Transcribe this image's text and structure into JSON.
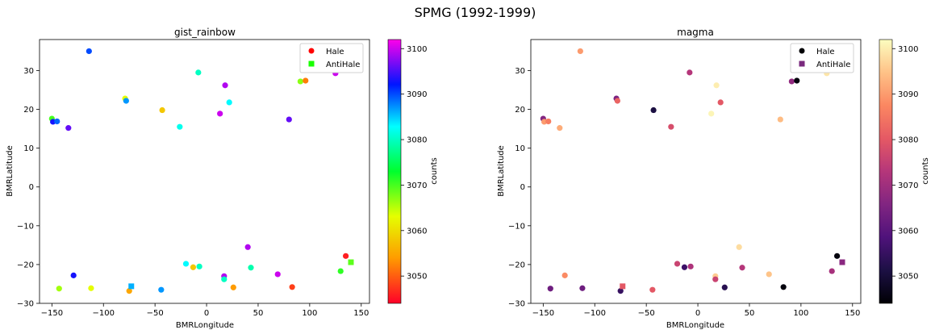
{
  "figure": {
    "suptitle": "SPMG (1992-1999)"
  },
  "chart_data": [
    {
      "type": "scatter",
      "title": "gist_rainbow",
      "xlabel": "BMRLongitude",
      "ylabel": "BMRLatitude",
      "xlim": [
        -162,
        158
      ],
      "ylim": [
        -30,
        38
      ],
      "xticks": [
        -150,
        -100,
        -50,
        0,
        50,
        100,
        150
      ],
      "yticks": [
        -30,
        -20,
        -10,
        0,
        10,
        20,
        30
      ],
      "colormap": "gist_rainbow",
      "colorbar": {
        "label": "counts",
        "range": [
          3044,
          3102
        ],
        "ticks": [
          3050,
          3060,
          3070,
          3080,
          3090,
          3100
        ]
      },
      "legend": {
        "placement": "top-right",
        "entries": [
          {
            "label": "Hale",
            "marker": "circle",
            "color": "#ff0000"
          },
          {
            "label": "AntiHale",
            "marker": "square",
            "color": "#19ff00"
          }
        ]
      },
      "series": [
        {
          "name": "Hale",
          "marker": "circle",
          "points": [
            {
              "x": -114,
              "y": 35,
              "c": 3090
            },
            {
              "x": -8,
              "y": 29.5,
              "c": 3080
            },
            {
              "x": 18,
              "y": 26.2,
              "c": 3099
            },
            {
              "x": 125,
              "y": 29.3,
              "c": 3100
            },
            {
              "x": -79,
              "y": 22.8,
              "c": 3063
            },
            {
              "x": -78,
              "y": 22.2,
              "c": 3087
            },
            {
              "x": 91,
              "y": 27.2,
              "c": 3067
            },
            {
              "x": 96,
              "y": 27.4,
              "c": 3052
            },
            {
              "x": 22,
              "y": 21.8,
              "c": 3083
            },
            {
              "x": -43,
              "y": 19.8,
              "c": 3058
            },
            {
              "x": 13,
              "y": 18.9,
              "c": 3100
            },
            {
              "x": -150,
              "y": 17.6,
              "c": 3070
            },
            {
              "x": -149,
              "y": 16.8,
              "c": 3093
            },
            {
              "x": -145,
              "y": 16.9,
              "c": 3089
            },
            {
              "x": -134,
              "y": 15.2,
              "c": 3096
            },
            {
              "x": -26,
              "y": 15.5,
              "c": 3082
            },
            {
              "x": 80,
              "y": 17.4,
              "c": 3096
            },
            {
              "x": 40,
              "y": -15.5,
              "c": 3099
            },
            {
              "x": 135,
              "y": -17.8,
              "c": 3046
            },
            {
              "x": -20,
              "y": -19.8,
              "c": 3083
            },
            {
              "x": -13,
              "y": -20.7,
              "c": 3058
            },
            {
              "x": -7,
              "y": -20.5,
              "c": 3080
            },
            {
              "x": 43,
              "y": -20.8,
              "c": 3079
            },
            {
              "x": 130,
              "y": -21.7,
              "c": 3071
            },
            {
              "x": -129,
              "y": -22.8,
              "c": 3093
            },
            {
              "x": 17,
              "y": -23,
              "c": 3099
            },
            {
              "x": 17,
              "y": -23.8,
              "c": 3080
            },
            {
              "x": 69,
              "y": -22.5,
              "c": 3100
            },
            {
              "x": -143,
              "y": -26.2,
              "c": 3066
            },
            {
              "x": -112,
              "y": -26.1,
              "c": 3063
            },
            {
              "x": -44,
              "y": -26.5,
              "c": 3087
            },
            {
              "x": -75,
              "y": -26.8,
              "c": 3055
            },
            {
              "x": 26,
              "y": -25.9,
              "c": 3054
            },
            {
              "x": 83,
              "y": -25.8,
              "c": 3048
            }
          ]
        },
        {
          "name": "AntiHale",
          "marker": "square",
          "points": [
            {
              "x": -73,
              "y": -25.6,
              "c": 3086
            },
            {
              "x": 140,
              "y": -19.4,
              "c": 3069
            }
          ]
        }
      ]
    },
    {
      "type": "scatter",
      "title": "magma",
      "xlabel": "BMRLongitude",
      "ylabel": "BMRLatitude",
      "xlim": [
        -162,
        158
      ],
      "ylim": [
        -30,
        38
      ],
      "xticks": [
        -150,
        -100,
        -50,
        0,
        50,
        100,
        150
      ],
      "yticks": [
        -30,
        -20,
        -10,
        0,
        10,
        20,
        30
      ],
      "colormap": "magma",
      "colorbar": {
        "label": "counts",
        "range": [
          3044,
          3102
        ],
        "ticks": [
          3050,
          3060,
          3070,
          3080,
          3090,
          3100
        ]
      },
      "legend": {
        "placement": "top-right",
        "entries": [
          {
            "label": "Hale",
            "marker": "circle",
            "color": "#000004"
          },
          {
            "label": "AntiHale",
            "marker": "square",
            "color": "#7a2a7e"
          }
        ]
      },
      "series": [
        {
          "name": "Hale",
          "marker": "circle",
          "points": [
            {
              "x": -114,
              "y": 35,
              "c": 3090
            },
            {
              "x": -8,
              "y": 29.5,
              "c": 3073
            },
            {
              "x": 18,
              "y": 26.2,
              "c": 3100
            },
            {
              "x": 125,
              "y": 29.3,
              "c": 3099
            },
            {
              "x": -79,
              "y": 22.8,
              "c": 3065
            },
            {
              "x": -78,
              "y": 22.2,
              "c": 3082
            },
            {
              "x": 91,
              "y": 27.2,
              "c": 3068
            },
            {
              "x": 96,
              "y": 27.4,
              "c": 3045
            },
            {
              "x": 22,
              "y": 21.8,
              "c": 3080
            },
            {
              "x": -43,
              "y": 19.8,
              "c": 3051
            },
            {
              "x": 13,
              "y": 18.9,
              "c": 3101
            },
            {
              "x": -150,
              "y": 17.6,
              "c": 3066
            },
            {
              "x": -149,
              "y": 16.8,
              "c": 3090
            },
            {
              "x": -145,
              "y": 16.9,
              "c": 3086
            },
            {
              "x": -134,
              "y": 15.2,
              "c": 3092
            },
            {
              "x": -26,
              "y": 15.5,
              "c": 3078
            },
            {
              "x": 80,
              "y": 17.4,
              "c": 3094
            },
            {
              "x": 40,
              "y": -15.5,
              "c": 3098
            },
            {
              "x": 135,
              "y": -17.8,
              "c": 3045
            },
            {
              "x": -20,
              "y": -19.8,
              "c": 3076
            },
            {
              "x": -13,
              "y": -20.7,
              "c": 3056
            },
            {
              "x": -7,
              "y": -20.5,
              "c": 3072
            },
            {
              "x": 43,
              "y": -20.8,
              "c": 3073
            },
            {
              "x": 130,
              "y": -21.7,
              "c": 3071
            },
            {
              "x": -129,
              "y": -22.8,
              "c": 3088
            },
            {
              "x": 17,
              "y": -23,
              "c": 3096
            },
            {
              "x": 17,
              "y": -23.8,
              "c": 3076
            },
            {
              "x": 69,
              "y": -22.5,
              "c": 3095
            },
            {
              "x": -143,
              "y": -26.2,
              "c": 3063
            },
            {
              "x": -112,
              "y": -26.1,
              "c": 3063
            },
            {
              "x": -44,
              "y": -26.5,
              "c": 3080
            },
            {
              "x": -75,
              "y": -26.8,
              "c": 3055
            },
            {
              "x": 26,
              "y": -25.9,
              "c": 3053
            },
            {
              "x": 83,
              "y": -25.8,
              "c": 3045
            }
          ]
        },
        {
          "name": "AntiHale",
          "marker": "square",
          "points": [
            {
              "x": -73,
              "y": -25.6,
              "c": 3080
            },
            {
              "x": 140,
              "y": -19.4,
              "c": 3067
            }
          ]
        }
      ]
    }
  ]
}
